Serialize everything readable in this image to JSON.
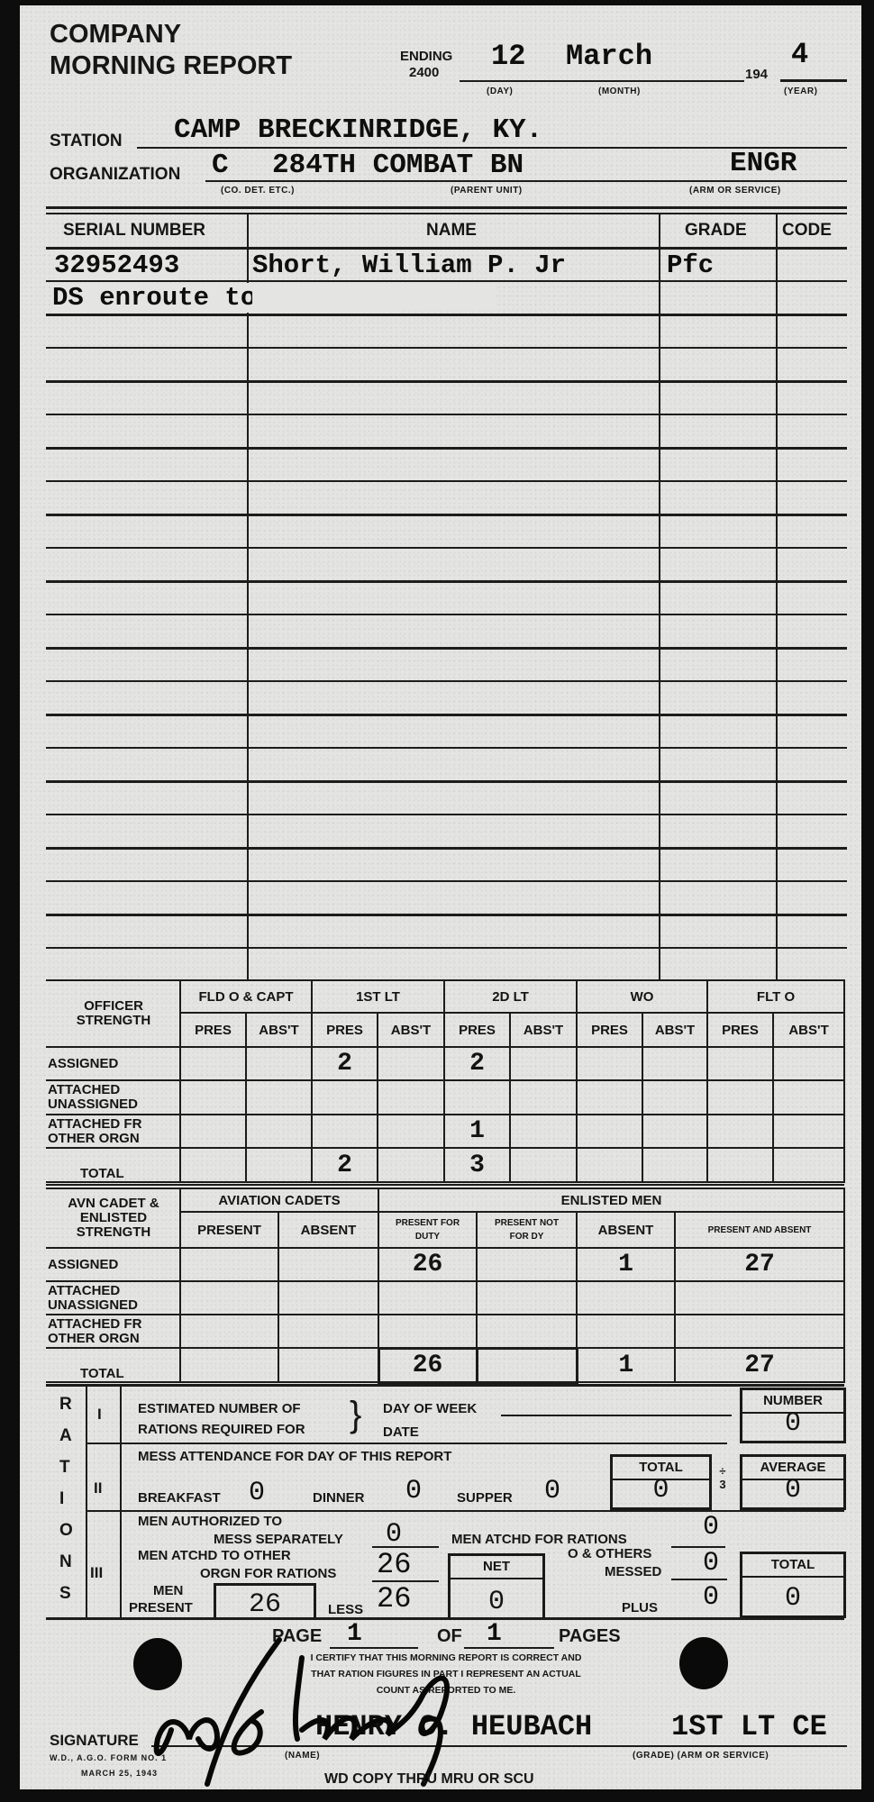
{
  "header": {
    "title_line1": "COMPANY",
    "title_line2": "MORNING REPORT",
    "ending_label": "ENDING",
    "ending_time": "2400",
    "day": "12",
    "month": "March",
    "year_prefix": "194",
    "year": "4",
    "day_caption": "(DAY)",
    "month_caption": "(MONTH)",
    "year_caption": "(YEAR)"
  },
  "station": {
    "label": "STATION",
    "value": "CAMP BRECKINRIDGE, KY."
  },
  "organization": {
    "label": "ORGANIZATION",
    "company": "C",
    "parent_unit": "284TH COMBAT BN",
    "arm": "ENGR",
    "company_caption": "(CO. DET. ETC.)",
    "parent_caption": "(PARENT UNIT)",
    "arm_caption": "(ARM OR SERVICE)"
  },
  "roster": {
    "headers": [
      "SERIAL NUMBER",
      "NAME",
      "GRADE",
      "CODE"
    ],
    "entries": [
      {
        "serial": "32952493",
        "name": "Short, William P. Jr",
        "grade": "Pfc",
        "code": ""
      }
    ],
    "remark": "DS enroute to jn to dy"
  },
  "officer_strength": {
    "title": "OFFICER STRENGTH",
    "groups": [
      "FLD O & CAPT",
      "1ST LT",
      "2D LT",
      "WO",
      "FLT O"
    ],
    "subheaders": [
      "PRES",
      "ABS'T"
    ],
    "rows": [
      {
        "label": "ASSIGNED",
        "values": [
          "",
          "",
          "2",
          "",
          "2",
          "",
          "",
          "",
          "",
          ""
        ]
      },
      {
        "label": "ATTACHED UNASSIGNED",
        "values": [
          "",
          "",
          "",
          "",
          "",
          "",
          "",
          "",
          "",
          ""
        ]
      },
      {
        "label": "ATTACHED FR OTHER ORGN",
        "values": [
          "",
          "",
          "",
          "",
          "1",
          "",
          "",
          "",
          "",
          ""
        ]
      },
      {
        "label": "TOTAL",
        "values": [
          "",
          "",
          "2",
          "",
          "3",
          "",
          "",
          "",
          "",
          ""
        ]
      }
    ]
  },
  "enlisted_strength": {
    "title": "AVN CADET & ENLISTED STRENGTH",
    "groups": [
      "AVIATION CADETS",
      "ENLISTED MEN"
    ],
    "subheaders": [
      "PRESENT",
      "ABSENT",
      "PRESENT FOR DUTY",
      "PRESENT NOT FOR DY",
      "ABSENT",
      "PRESENT AND ABSENT"
    ],
    "rows": [
      {
        "label": "ASSIGNED",
        "values": [
          "",
          "",
          "26",
          "",
          "1",
          "27"
        ]
      },
      {
        "label": "ATTACHED UNASSIGNED",
        "values": [
          "",
          "",
          "",
          "",
          "",
          ""
        ]
      },
      {
        "label": "ATTACHED FR OTHER ORGN",
        "values": [
          "",
          "",
          "",
          "",
          "",
          ""
        ]
      },
      {
        "label": "TOTAL",
        "values": [
          "",
          "",
          "26",
          "",
          "1",
          "27"
        ]
      }
    ]
  },
  "rations": {
    "side_letters": [
      "R",
      "A",
      "T",
      "I",
      "O",
      "N",
      "S"
    ],
    "section1": {
      "numeral": "I",
      "label_line1": "ESTIMATED NUMBER OF",
      "label_line2": "RATIONS REQUIRED FOR",
      "day_of_week_label": "DAY OF WEEK",
      "date_label": "DATE",
      "number_label": "NUMBER",
      "number_value": "0"
    },
    "section2": {
      "numeral": "II",
      "title": "MESS ATTENDANCE FOR DAY OF THIS REPORT",
      "breakfast_label": "BREAKFAST",
      "breakfast": "0",
      "dinner_label": "DINNER",
      "dinner": "0",
      "supper_label": "SUPPER",
      "supper": "0",
      "total_label": "TOTAL",
      "total": "0",
      "divide_label": "÷ 3",
      "average_label": "AVERAGE",
      "average": "0"
    },
    "section3": {
      "numeral": "III",
      "mess_sep_line1": "MEN AUTHORIZED TO",
      "mess_sep_line2": "MESS SEPARATELY",
      "mess_sep": "0",
      "atchd_for_rations_label": "MEN ATCHD FOR RATIONS",
      "atchd_for_rations": "0",
      "atchd_other_line1": "MEN ATCHD TO OTHER",
      "atchd_other_line2": "ORGN FOR RATIONS",
      "atchd_other": "26",
      "net_label": "NET",
      "net": "0",
      "others_line1": "O & OTHERS",
      "others_line2": "MESSED",
      "others": "0",
      "total_label": "TOTAL",
      "total": "0",
      "men_present_line1": "MEN",
      "men_present_line2": "PRESENT",
      "men_present": "26",
      "less_label": "LESS",
      "less": "26",
      "plus_label": "PLUS",
      "plus": "0"
    }
  },
  "footer": {
    "page_label": "PAGE",
    "page": "1",
    "of_label": "OF",
    "pages": "1",
    "pages_label": "PAGES",
    "certify_line1": "I CERTIFY THAT THIS MORNING REPORT IS CORRECT AND",
    "certify_line2": "THAT RATION FIGURES IN PART I REPRESENT AN ACTUAL",
    "certify_line3": "COUNT AS REPORTED TO ME.",
    "signature_label": "SIGNATURE",
    "signer_name": "HENRY C. HEUBACH",
    "signer_grade": "1ST LT CE",
    "name_caption": "(NAME)",
    "grade_caption": "(GRADE) (ARM OR SERVICE)",
    "form_number": "W.D., A.G.O. FORM NO. 1",
    "form_date": "MARCH 25, 1943",
    "copy_note": "WD COPY THRU MRU OR SCU"
  }
}
